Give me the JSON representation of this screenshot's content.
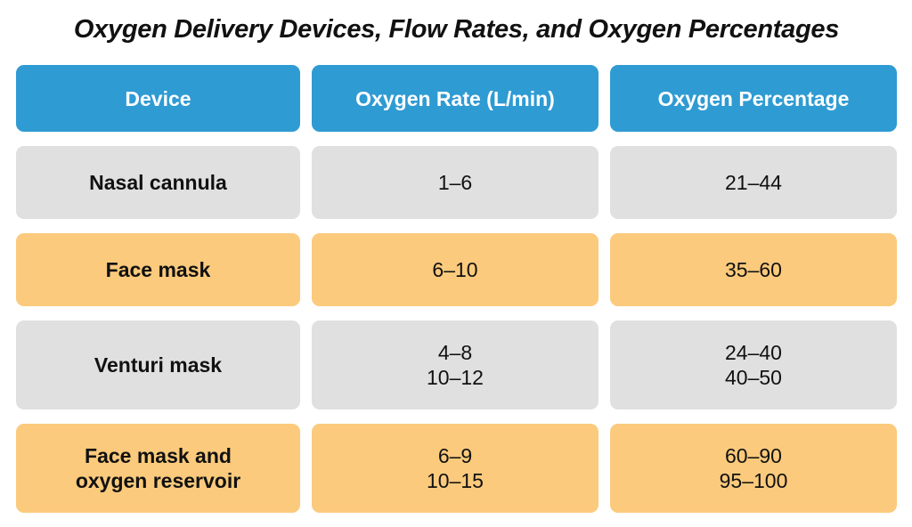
{
  "title": "Oxygen Delivery Devices, Flow Rates, and Oxygen Percentages",
  "table": {
    "columns": [
      {
        "label": "Device"
      },
      {
        "label": "Oxygen Rate (L/min)"
      },
      {
        "label": "Oxygen Percentage"
      }
    ],
    "rows": [
      {
        "variant": "gray",
        "device": [
          "Nasal cannula"
        ],
        "rate": [
          "1–6"
        ],
        "percentage": [
          "21–44"
        ]
      },
      {
        "variant": "orange",
        "device": [
          "Face mask"
        ],
        "rate": [
          "6–10"
        ],
        "percentage": [
          "35–60"
        ]
      },
      {
        "variant": "gray",
        "device": [
          "Venturi mask"
        ],
        "rate": [
          "4–8",
          "10–12"
        ],
        "percentage": [
          "24–40",
          "40–50"
        ]
      },
      {
        "variant": "orange",
        "device": [
          "Face mask and",
          "oxygen reservoir"
        ],
        "rate": [
          "6–9",
          "10–15"
        ],
        "percentage": [
          "60–90",
          "95–100"
        ]
      }
    ]
  },
  "colors": {
    "header_bg": "#2f9bd3",
    "header_text": "#ffffff",
    "row_gray": "#e0e0e0",
    "row_orange": "#fbca7c",
    "text": "#111111"
  }
}
